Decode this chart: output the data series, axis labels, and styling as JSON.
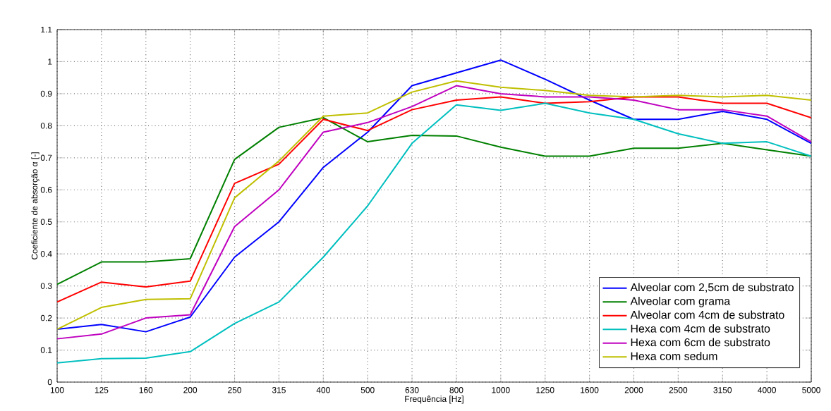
{
  "chart_data": {
    "type": "line",
    "xlabel": "Frequência [Hz]",
    "ylabel": "Coeficiente de absorção α [-]",
    "categories": [
      "100",
      "125",
      "160",
      "200",
      "250",
      "315",
      "400",
      "500",
      "630",
      "800",
      "1000",
      "1250",
      "1600",
      "2000",
      "2500",
      "3150",
      "4000",
      "5000"
    ],
    "ylim": [
      0,
      1.1
    ],
    "yticks": [
      0,
      0.1,
      0.2,
      0.3,
      0.4,
      0.5,
      0.6,
      0.7,
      0.8,
      0.9,
      1,
      1.1
    ],
    "grid": true,
    "legend": "bottom right",
    "line_style": "solid",
    "marker": "none",
    "series": [
      {
        "name": "Alveolar com 2,5cm de substrato",
        "color": "#0000ff",
        "values": [
          0.165,
          0.18,
          0.157,
          0.203,
          0.39,
          0.5,
          0.67,
          0.78,
          0.925,
          0.965,
          1.005,
          0.945,
          0.88,
          0.82,
          0.82,
          0.845,
          0.82,
          0.745
        ]
      },
      {
        "name": "Alveolar com grama",
        "color": "#008000",
        "values": [
          0.305,
          0.375,
          0.375,
          0.385,
          0.695,
          0.795,
          0.825,
          0.75,
          0.77,
          0.768,
          0.733,
          0.705,
          0.705,
          0.73,
          0.73,
          0.745,
          0.725,
          0.705
        ]
      },
      {
        "name": "Alveolar com 4cm de substrato",
        "color": "#ff0000",
        "values": [
          0.25,
          0.312,
          0.297,
          0.315,
          0.62,
          0.68,
          0.82,
          0.785,
          0.85,
          0.88,
          0.89,
          0.87,
          0.875,
          0.89,
          0.89,
          0.87,
          0.87,
          0.825
        ]
      },
      {
        "name": "Hexa com 4cm de substrato",
        "color": "#00bfbf",
        "values": [
          0.06,
          0.073,
          0.075,
          0.095,
          0.183,
          0.25,
          0.39,
          0.55,
          0.745,
          0.865,
          0.848,
          0.87,
          0.84,
          0.82,
          0.775,
          0.745,
          0.75,
          0.705
        ]
      },
      {
        "name": "Hexa com 6cm de substrato",
        "color": "#bf00bf",
        "values": [
          0.135,
          0.15,
          0.2,
          0.21,
          0.485,
          0.6,
          0.78,
          0.81,
          0.86,
          0.925,
          0.9,
          0.89,
          0.89,
          0.88,
          0.85,
          0.85,
          0.83,
          0.75
        ]
      },
      {
        "name": "Hexa com sedum",
        "color": "#bfbf00",
        "values": [
          0.165,
          0.233,
          0.258,
          0.26,
          0.575,
          0.69,
          0.83,
          0.84,
          0.905,
          0.94,
          0.92,
          0.91,
          0.895,
          0.89,
          0.895,
          0.89,
          0.895,
          0.88
        ]
      }
    ]
  }
}
